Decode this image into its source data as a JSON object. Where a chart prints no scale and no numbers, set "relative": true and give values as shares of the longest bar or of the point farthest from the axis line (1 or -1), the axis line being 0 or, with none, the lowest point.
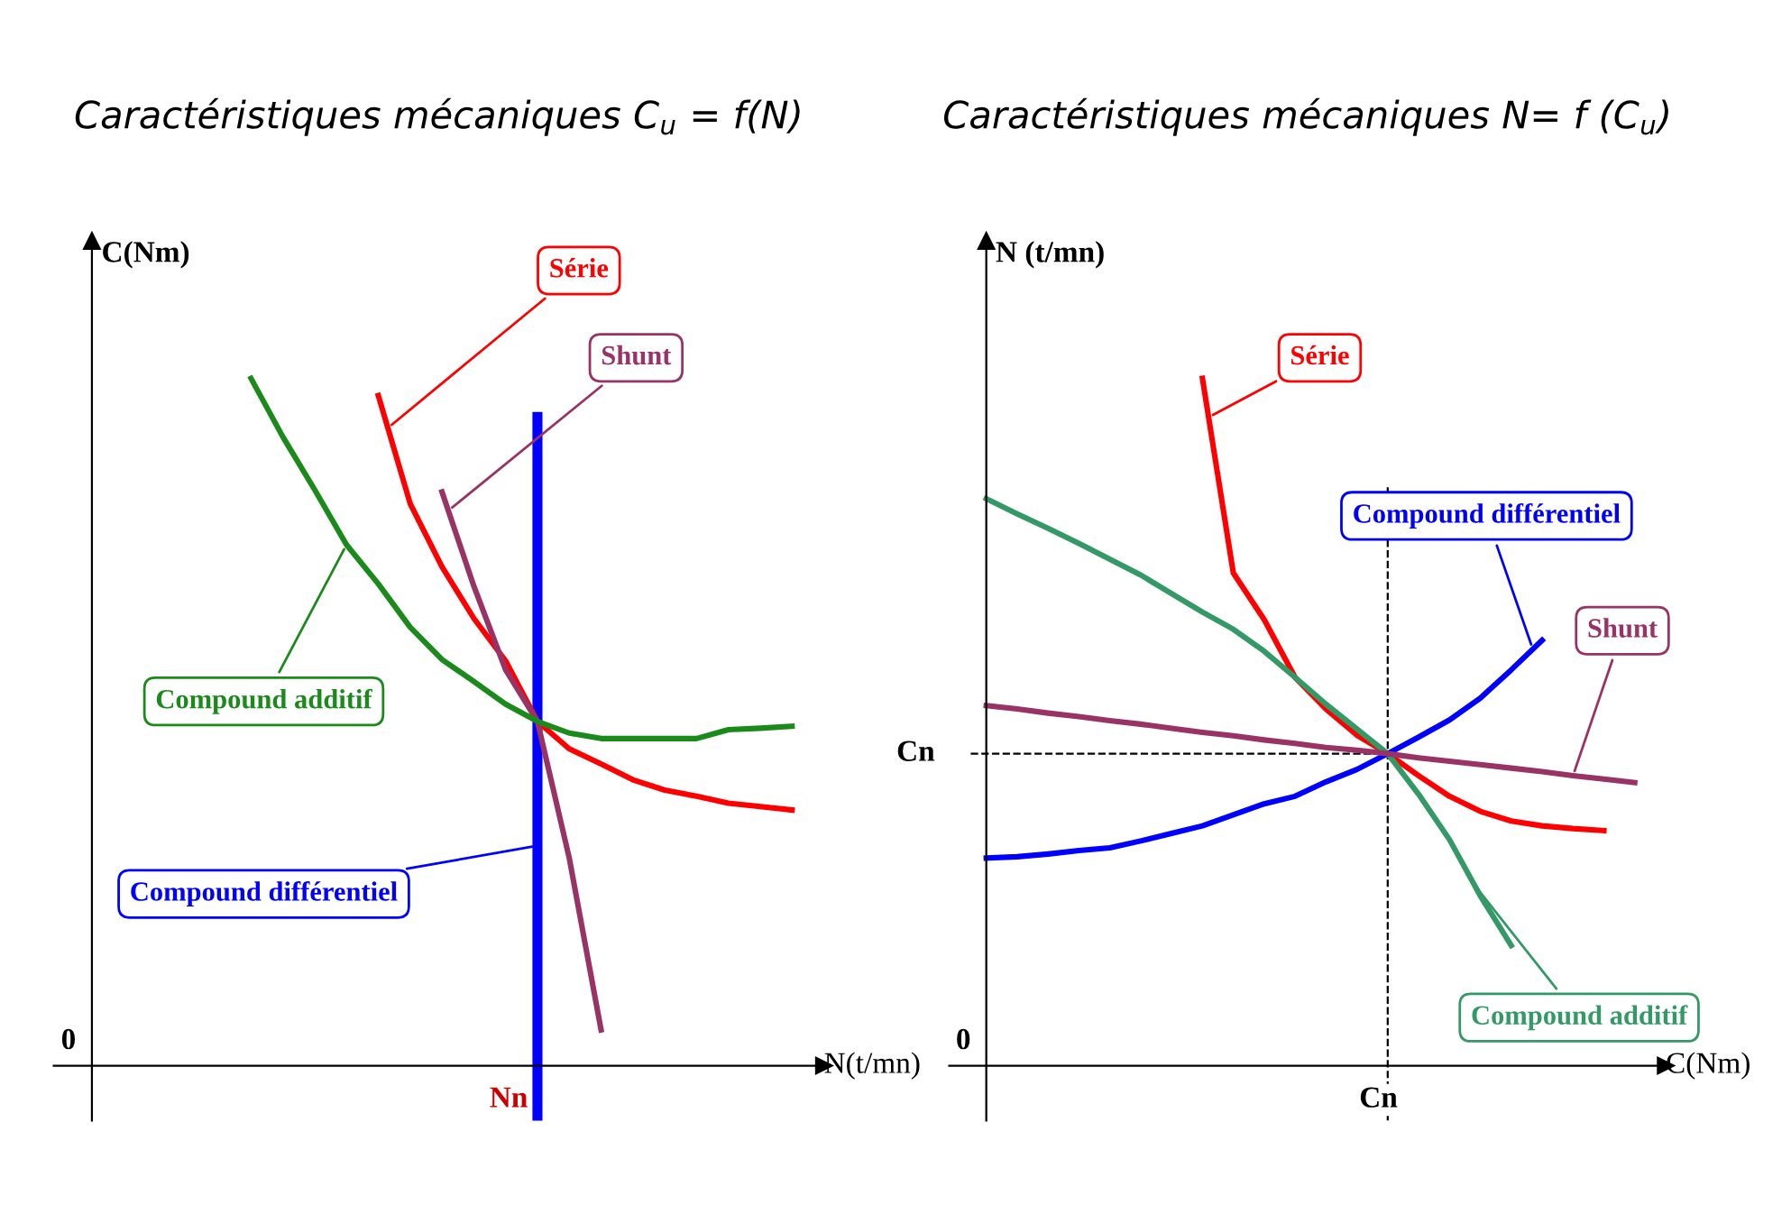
{
  "chart_data": [
    {
      "type": "line",
      "relative": true,
      "title": "Caractéristiques mécaniques C$_{u}$ = f(N)",
      "xlabel": "N(t/mn)",
      "ylabel": "C(Nm)",
      "annotations": [
        "0",
        "Nn",
        "Compound différentiel"
      ],
      "legend": false,
      "categories": [
        null,
        null,
        null,
        null,
        null,
        null,
        null,
        null,
        null,
        null,
        null,
        null,
        null,
        null,
        null,
        null,
        null,
        null,
        null,
        null,
        null,
        null,
        null
      ],
      "series": [
        {
          "name": "Série",
          "color": "#ff0000",
          "values": [
            null,
            null,
            null,
            null,
            null,
            null,
            null,
            null,
            null,
            0.975,
            0.818,
            0.726,
            0.651,
            0.589,
            0.501,
            0.461,
            0.439,
            0.416,
            0.401,
            0.392,
            0.382,
            0.377,
            0.372
          ]
        },
        {
          "name": "Shunt",
          "color": "#993366",
          "values": [
            null,
            null,
            null,
            null,
            null,
            null,
            null,
            null,
            null,
            null,
            null,
            0.835,
            0.698,
            0.576,
            0.501,
            0.302,
            0.052,
            null,
            null,
            null,
            null,
            null,
            null
          ]
        },
        {
          "name": "Compound additif",
          "color": "#1a8a1a",
          "values": [
            null,
            null,
            null,
            null,
            null,
            1.0,
            0.915,
            0.838,
            0.758,
            0.701,
            0.638,
            0.591,
            0.559,
            0.526,
            0.501,
            0.484,
            0.476,
            0.476,
            0.476,
            0.476,
            0.489,
            0.491,
            0.494
          ]
        }
      ]
    },
    {
      "type": "line",
      "relative": true,
      "title": "Caractéristiques mécaniques N= f (C$_{u}$)",
      "xlabel": "C(Nm)",
      "ylabel": "N (t/mn)",
      "annotations": [
        "0",
        "Cn"
      ],
      "legend": false,
      "categories": [
        null,
        null,
        null,
        null,
        null,
        null,
        null,
        null,
        null,
        null,
        null,
        null,
        null,
        null,
        null,
        null,
        null,
        null,
        null,
        null,
        null,
        null
      ],
      "ref_lines": [
        {
          "axis": "y",
          "value": 0.454,
          "label": "Cn",
          "line_style": "dashed",
          "color": "#000000"
        }
      ],
      "series": [
        {
          "name": "Série",
          "color": "#ff0000",
          "values": [
            null,
            null,
            null,
            null,
            null,
            null,
            null,
            1.0,
            0.717,
            0.649,
            0.565,
            0.519,
            0.481,
            0.454,
            0.422,
            0.392,
            0.37,
            0.356,
            0.349,
            0.345,
            0.342,
            null
          ]
        },
        {
          "name": "Compound additif",
          "color": "#339966",
          "values": [
            0.825,
            0.803,
            0.782,
            0.76,
            0.737,
            0.714,
            0.687,
            0.66,
            0.635,
            0.603,
            0.565,
            0.526,
            0.49,
            0.454,
            0.395,
            0.329,
            0.247,
            0.175,
            null,
            null,
            null,
            null
          ]
        },
        {
          "name": "Compound différentiel",
          "color": "#0000ff",
          "values": [
            0.302,
            0.304,
            0.308,
            0.313,
            0.317,
            0.327,
            0.338,
            0.349,
            0.365,
            0.381,
            0.392,
            0.413,
            0.431,
            0.454,
            0.478,
            0.503,
            0.535,
            0.576,
            0.619,
            null,
            null,
            null
          ]
        },
        {
          "name": "Shunt",
          "color": "#993366",
          "values": [
            0.524,
            0.519,
            0.513,
            0.508,
            0.502,
            0.497,
            0.491,
            0.485,
            0.48,
            0.474,
            0.469,
            0.463,
            0.459,
            0.454,
            0.448,
            0.443,
            0.438,
            0.433,
            0.428,
            0.422,
            0.417,
            0.412
          ]
        }
      ]
    }
  ]
}
